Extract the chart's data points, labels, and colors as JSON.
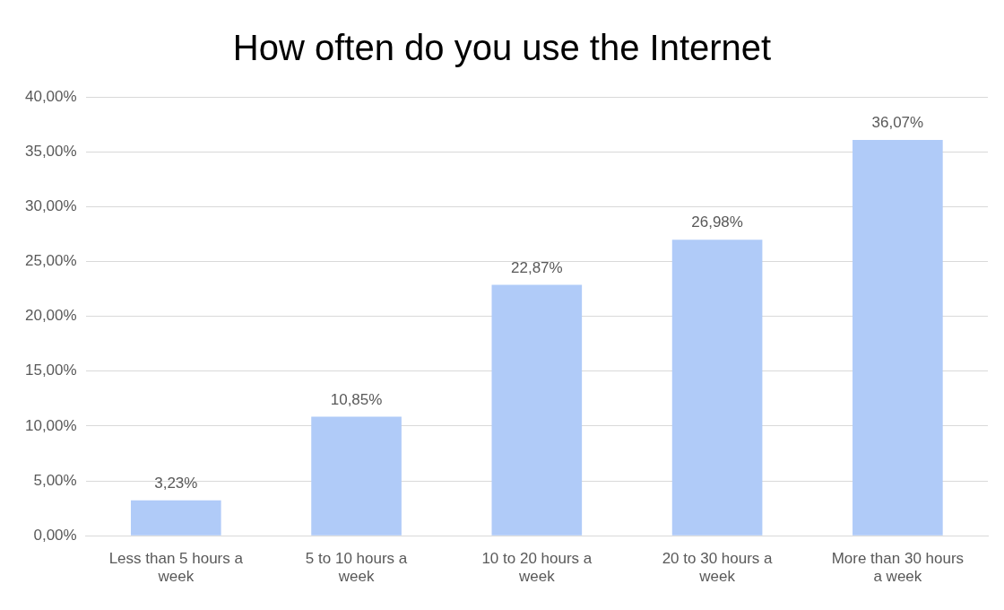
{
  "chart_data": {
    "type": "bar",
    "title": "How often do you use the Internet",
    "categories": [
      "Less than 5 hours a week",
      "5 to 10 hours a week",
      "10 to 20 hours a week",
      "20 to 30 hours a week",
      "More than 30 hours a week"
    ],
    "values": [
      3.23,
      10.85,
      22.87,
      26.98,
      36.07
    ],
    "value_labels": [
      "3,23%",
      "10,85%",
      "22,87%",
      "26,98%",
      "36,07%"
    ],
    "color": "#b0cbf8",
    "ylim": [
      0,
      40
    ],
    "yticks": [
      {
        "value": 0,
        "label": "0,00%"
      },
      {
        "value": 5,
        "label": "5,00%"
      },
      {
        "value": 10,
        "label": "10,00%"
      },
      {
        "value": 15,
        "label": "15,00%"
      },
      {
        "value": 20,
        "label": "20,00%"
      },
      {
        "value": 25,
        "label": "25,00%"
      },
      {
        "value": 30,
        "label": "30,00%"
      },
      {
        "value": 35,
        "label": "35,00%"
      },
      {
        "value": 40,
        "label": "40,00%"
      }
    ],
    "grid": "y",
    "legend": false
  }
}
